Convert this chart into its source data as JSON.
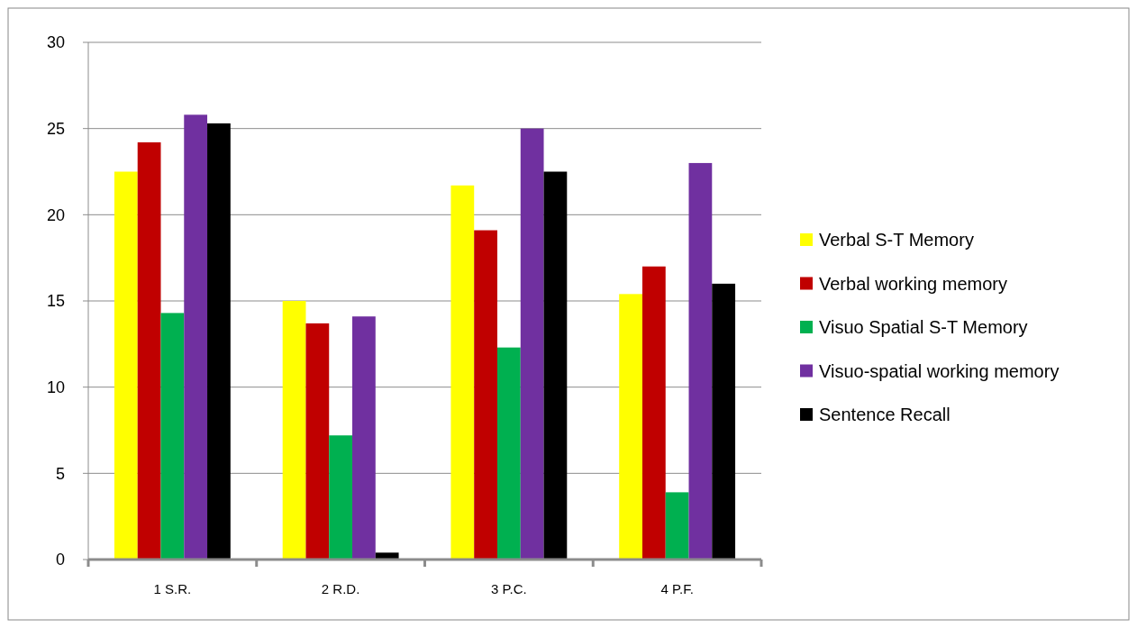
{
  "chart_data": {
    "type": "bar",
    "categories": [
      "1 S.R.",
      "2 R.D.",
      "3 P.C.",
      "4 P.F."
    ],
    "series": [
      {
        "name": "Verbal S-T Memory",
        "color": "#ffff00",
        "values": [
          22.5,
          15.0,
          21.7,
          15.4
        ]
      },
      {
        "name": "Verbal working memory",
        "color": "#c00000",
        "values": [
          24.2,
          13.7,
          19.1,
          17.0
        ]
      },
      {
        "name": "Visuo Spatial S-T Memory",
        "color": "#00b050",
        "values": [
          14.3,
          7.2,
          12.3,
          3.9
        ]
      },
      {
        "name": "Visuo-spatial working memory",
        "color": "#7030a0",
        "values": [
          25.8,
          14.1,
          25.0,
          23.0
        ]
      },
      {
        "name": "Sentence Recall",
        "color": "#000000",
        "values": [
          25.3,
          0.4,
          22.5,
          16.0
        ]
      }
    ],
    "ylim": [
      0,
      30
    ],
    "yticks": [
      0,
      5,
      10,
      15,
      20,
      25,
      30
    ],
    "grid": "y",
    "legend": "right"
  }
}
